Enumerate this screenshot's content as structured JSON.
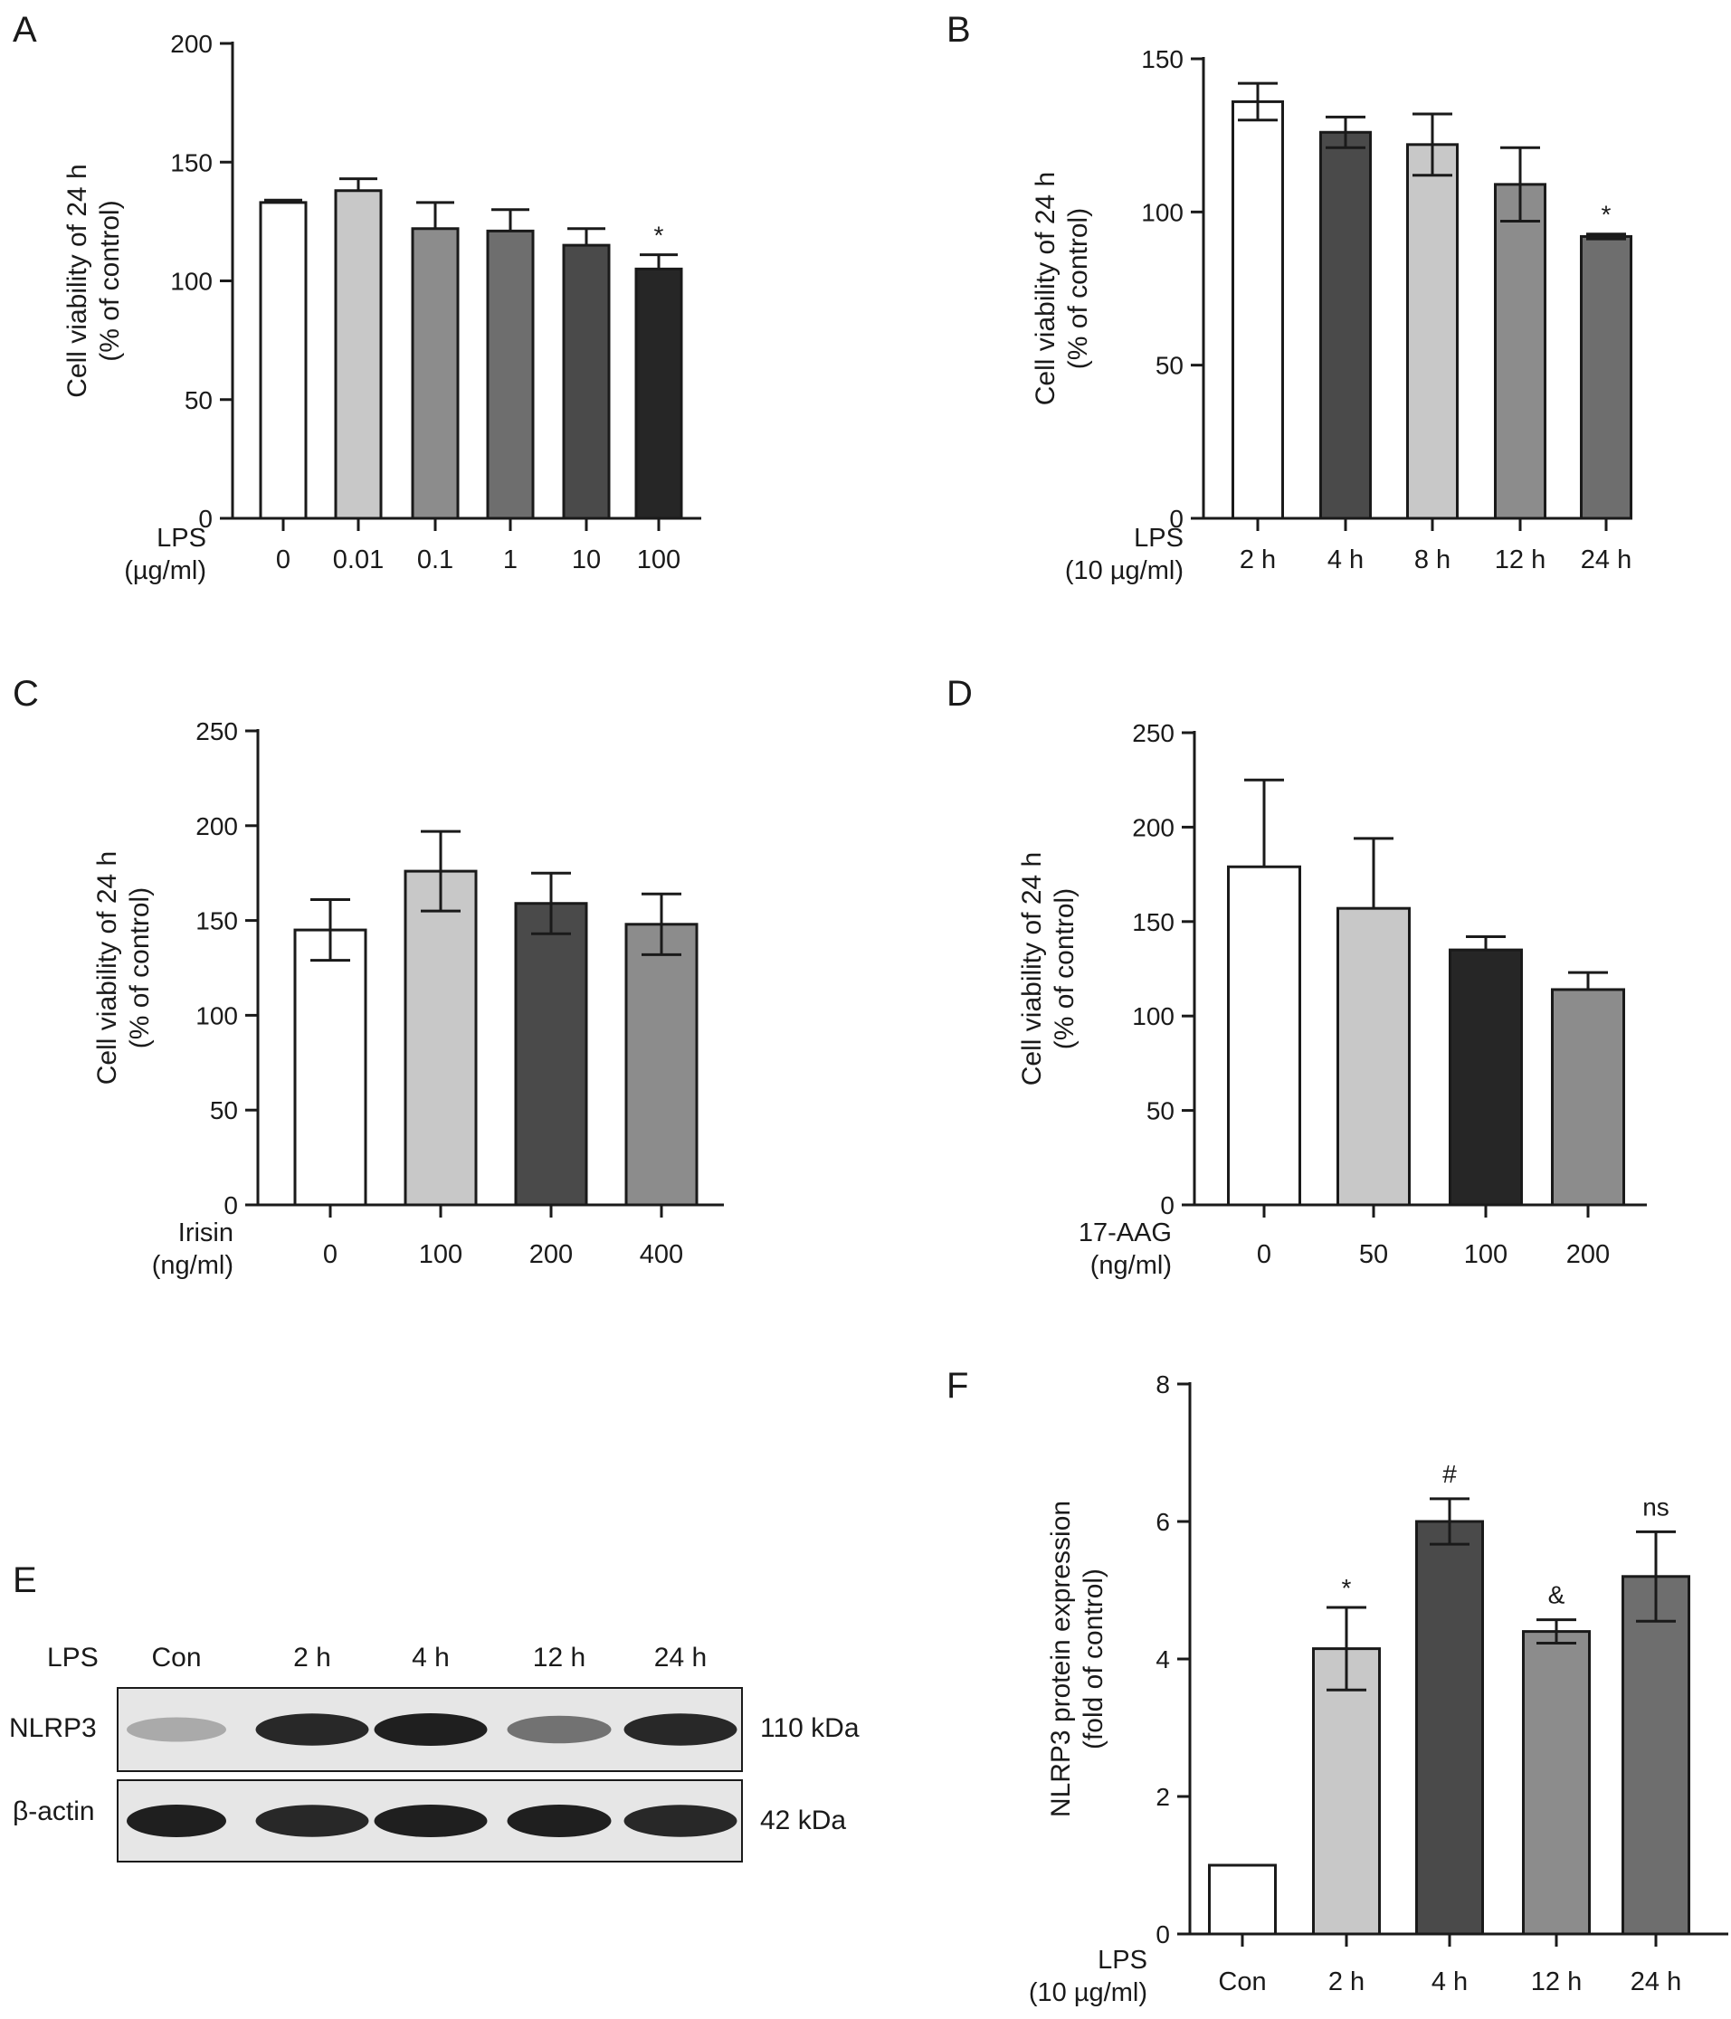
{
  "colors": {
    "white": "#ffffff",
    "light_gray": "#c8c8c8",
    "mid_gray": "#8c8c8c",
    "gray": "#6e6e6e",
    "dark_gray": "#4a4a4a",
    "near_black": "#262626"
  },
  "chart_data": [
    {
      "panel": "A",
      "type": "bar",
      "ylabel": "Cell viability of 24 h (% of control)",
      "ylabel_lines": [
        "Cell viability of 24 h",
        "(% of control)"
      ],
      "xlabel_lines": [
        "LPS",
        "(µg/ml)"
      ],
      "categories": [
        "0",
        "0.01",
        "0.1",
        "1",
        "10",
        "100"
      ],
      "values": [
        133,
        138,
        122,
        121,
        115,
        105
      ],
      "errors": [
        1,
        5,
        11,
        9,
        7,
        6
      ],
      "error_style": "upper",
      "bar_colors": [
        "#ffffff",
        "#c8c8c8",
        "#8c8c8c",
        "#6e6e6e",
        "#4a4a4a",
        "#262626"
      ],
      "significance": [
        "",
        "",
        "",
        "",
        "",
        "*"
      ],
      "ylim": [
        0,
        200
      ],
      "yticks": [
        0,
        50,
        100,
        150,
        200
      ]
    },
    {
      "panel": "B",
      "type": "bar",
      "ylabel": "Cell viability of 24 h (% of control)",
      "ylabel_lines": [
        "Cell viability of 24 h",
        "(% of control)"
      ],
      "xlabel_lines": [
        "LPS",
        "(10 µg/ml)"
      ],
      "categories": [
        "2 h",
        "4 h",
        "8 h",
        "12 h",
        "24 h"
      ],
      "values": [
        136,
        126,
        122,
        109,
        92
      ],
      "errors": [
        6,
        5,
        10,
        12,
        0.8
      ],
      "error_style": "both",
      "bar_colors": [
        "#ffffff",
        "#4a4a4a",
        "#c8c8c8",
        "#8c8c8c",
        "#6e6e6e"
      ],
      "significance": [
        "",
        "",
        "",
        "",
        "*"
      ],
      "ylim": [
        0,
        150
      ],
      "yticks": [
        0,
        50,
        100,
        150
      ]
    },
    {
      "panel": "C",
      "type": "bar",
      "ylabel": "Cell viability of 24 h (% of control)",
      "ylabel_lines": [
        "Cell viability of 24 h",
        "(% of control)"
      ],
      "xlabel_lines": [
        "Irisin",
        "(ng/ml)"
      ],
      "categories": [
        "0",
        "100",
        "200",
        "400"
      ],
      "values": [
        145,
        176,
        159,
        148
      ],
      "errors": [
        16,
        21,
        16,
        16
      ],
      "error_style": "both",
      "bar_colors": [
        "#ffffff",
        "#c8c8c8",
        "#4a4a4a",
        "#8c8c8c"
      ],
      "significance": [
        "",
        "",
        "",
        ""
      ],
      "ylim": [
        0,
        250
      ],
      "yticks": [
        0,
        50,
        100,
        150,
        200,
        250
      ]
    },
    {
      "panel": "D",
      "type": "bar",
      "ylabel": "Cell viability of 24 h (% of control)",
      "ylabel_lines": [
        "Cell viability of 24 h",
        "(% of control)"
      ],
      "xlabel_lines": [
        "17-AAG",
        "(ng/ml)"
      ],
      "categories": [
        "0",
        "50",
        "100",
        "200"
      ],
      "values": [
        179,
        157,
        135,
        114
      ],
      "errors": [
        46,
        37,
        7,
        9
      ],
      "error_style": "upper",
      "bar_colors": [
        "#ffffff",
        "#c8c8c8",
        "#262626",
        "#8c8c8c"
      ],
      "significance": [
        "",
        "",
        "",
        ""
      ],
      "ylim": [
        0,
        250
      ],
      "yticks": [
        0,
        50,
        100,
        150,
        200,
        250
      ]
    },
    {
      "panel": "F",
      "type": "bar",
      "ylabel": "NLRP3 protein expression (fold of control)",
      "ylabel_lines": [
        "NLRP3 protein expression",
        "(fold of control)"
      ],
      "xlabel_lines": [
        "LPS",
        "(10 µg/ml)"
      ],
      "categories": [
        "Con",
        "2 h",
        "4 h",
        "12 h",
        "24 h"
      ],
      "values": [
        1.0,
        4.15,
        6.0,
        4.4,
        5.2
      ],
      "errors": [
        0,
        0.6,
        0.33,
        0.17,
        0.65
      ],
      "error_style": "both",
      "bar_colors": [
        "#ffffff",
        "#c8c8c8",
        "#4a4a4a",
        "#8c8c8c",
        "#6e6e6e"
      ],
      "significance": [
        "",
        "*",
        "#",
        "&",
        "ns"
      ],
      "ylim": [
        0,
        8
      ],
      "yticks": [
        0,
        2,
        4,
        6,
        8
      ]
    }
  ],
  "blot": {
    "panel": "E",
    "treatment_label": "LPS",
    "lanes": [
      "Con",
      "2 h",
      "4 h",
      "12 h",
      "24 h"
    ],
    "rows": [
      {
        "protein": "NLRP3",
        "size": "110 kDa",
        "band_intensity": [
          0.25,
          0.95,
          1.0,
          0.55,
          0.95
        ]
      },
      {
        "protein": "β-actin",
        "size": "42 kDa",
        "band_intensity": [
          1.0,
          0.95,
          1.0,
          1.0,
          0.95
        ]
      }
    ]
  }
}
